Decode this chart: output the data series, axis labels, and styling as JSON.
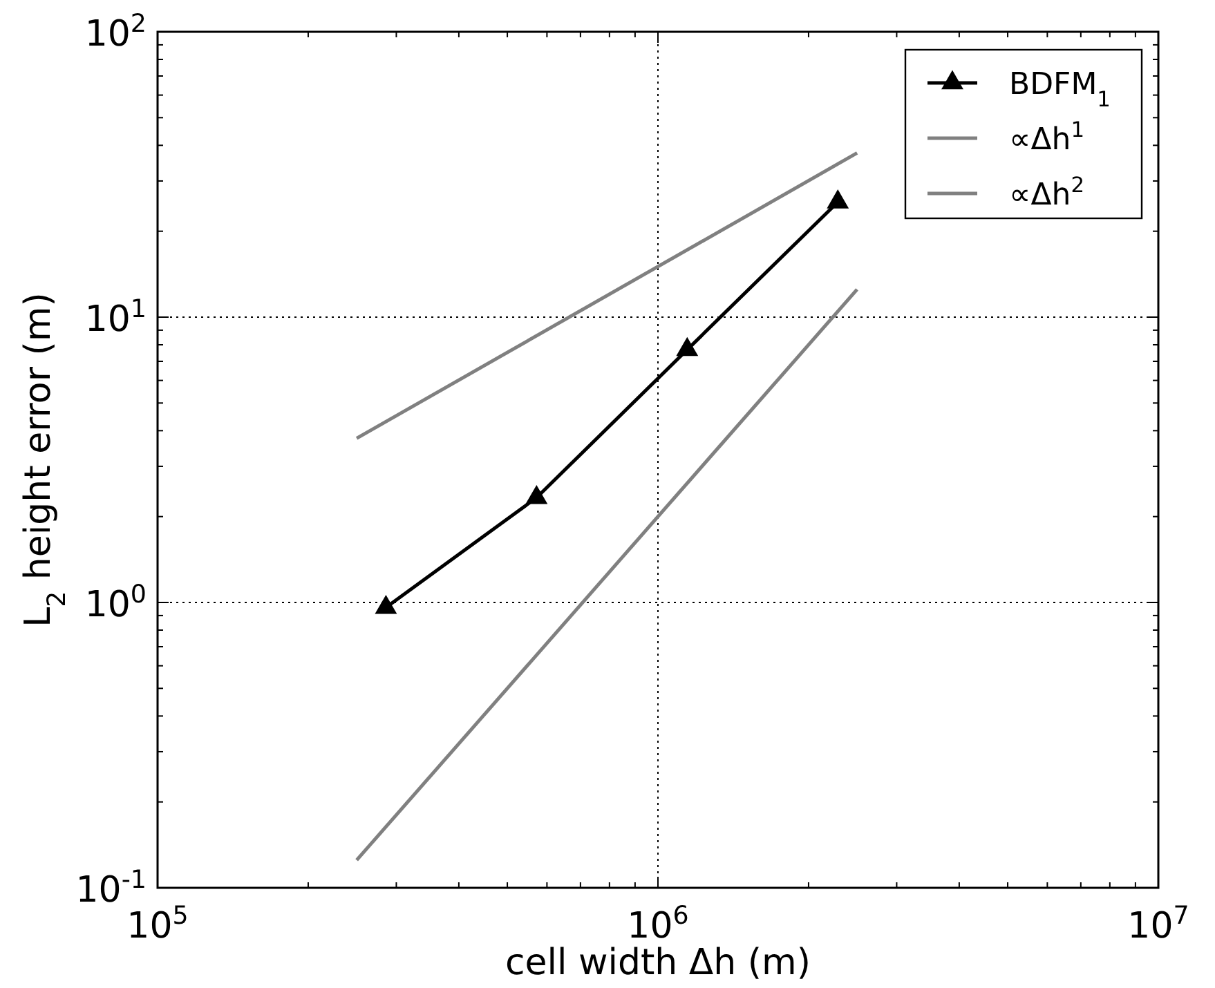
{
  "chart_data": {
    "type": "line",
    "xlabel": "cell width Δh (m)",
    "ylabel": "L$_{2}$ height error (m)",
    "log": "xy",
    "grid": true,
    "legend": "top right",
    "xlim": [
      100000,
      10000000
    ],
    "ylim": [
      0.1,
      100
    ],
    "xticks": [
      {
        "value": 100000,
        "label": "10$^{5}$"
      },
      {
        "value": 1000000,
        "label": "10$^{6}$"
      },
      {
        "value": 10000000,
        "label": "10$^{7}$"
      }
    ],
    "yticks": [
      {
        "value": 0.1,
        "label": "10$^{-1}$"
      },
      {
        "value": 1,
        "label": "10$^{0}$"
      },
      {
        "value": 10,
        "label": "10$^{1}$"
      },
      {
        "value": 100,
        "label": "10$^{2}$"
      }
    ],
    "series": [
      {
        "name": "BDFM$_{1}$",
        "color": "#000000",
        "marker": "triangle",
        "x": [
          286000,
          572000,
          1144000,
          2288000
        ],
        "values": [
          0.96,
          2.33,
          7.69,
          25.3
        ]
      },
      {
        "name": "∝Δh$^{1}$",
        "color": "#808080",
        "marker": "none",
        "x": [
          250000,
          2500000
        ],
        "values": [
          3.76,
          37.6
        ]
      },
      {
        "name": "∝Δh$^{2}$",
        "color": "#808080",
        "marker": "none",
        "x": [
          250000,
          2500000
        ],
        "values": [
          0.125,
          12.5
        ]
      }
    ]
  }
}
